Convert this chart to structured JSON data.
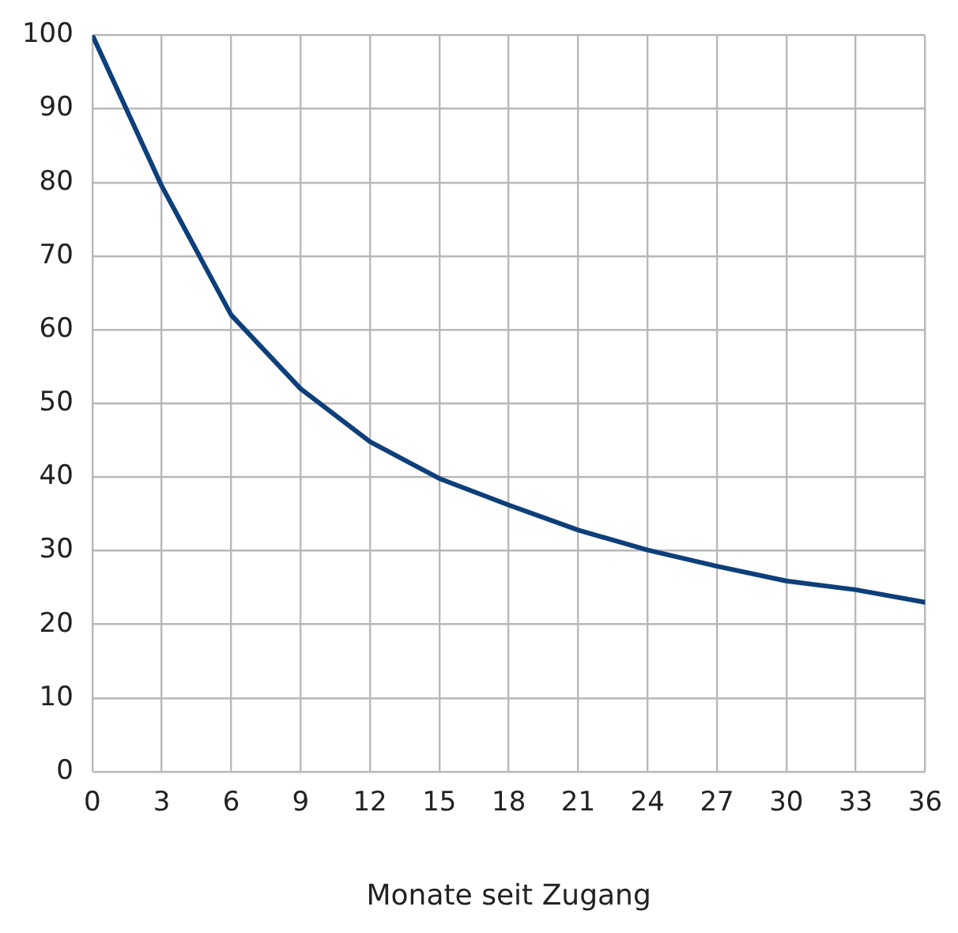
{
  "chart_data": {
    "type": "line",
    "xlabel": "Monate seit Zugang",
    "x": [
      0,
      3,
      6,
      9,
      12,
      15,
      18,
      21,
      24,
      27,
      30,
      33,
      36
    ],
    "series": [
      {
        "color": "#0d3f7a",
        "values": [
          100,
          79.5,
          62,
          52,
          44.8,
          39.8,
          36.2,
          32.8,
          30.1,
          27.9,
          25.9,
          24.7,
          23
        ]
      }
    ],
    "xlim": [
      0,
      36
    ],
    "xticks": [
      0,
      3,
      6,
      9,
      12,
      15,
      18,
      21,
      24,
      27,
      30,
      33,
      36
    ],
    "ylim": [
      0,
      100
    ],
    "yticks": [
      0,
      10,
      20,
      30,
      40,
      50,
      60,
      70,
      80,
      90,
      100
    ],
    "grid": true,
    "legend": false,
    "marker": "none",
    "line_style": "solid"
  }
}
